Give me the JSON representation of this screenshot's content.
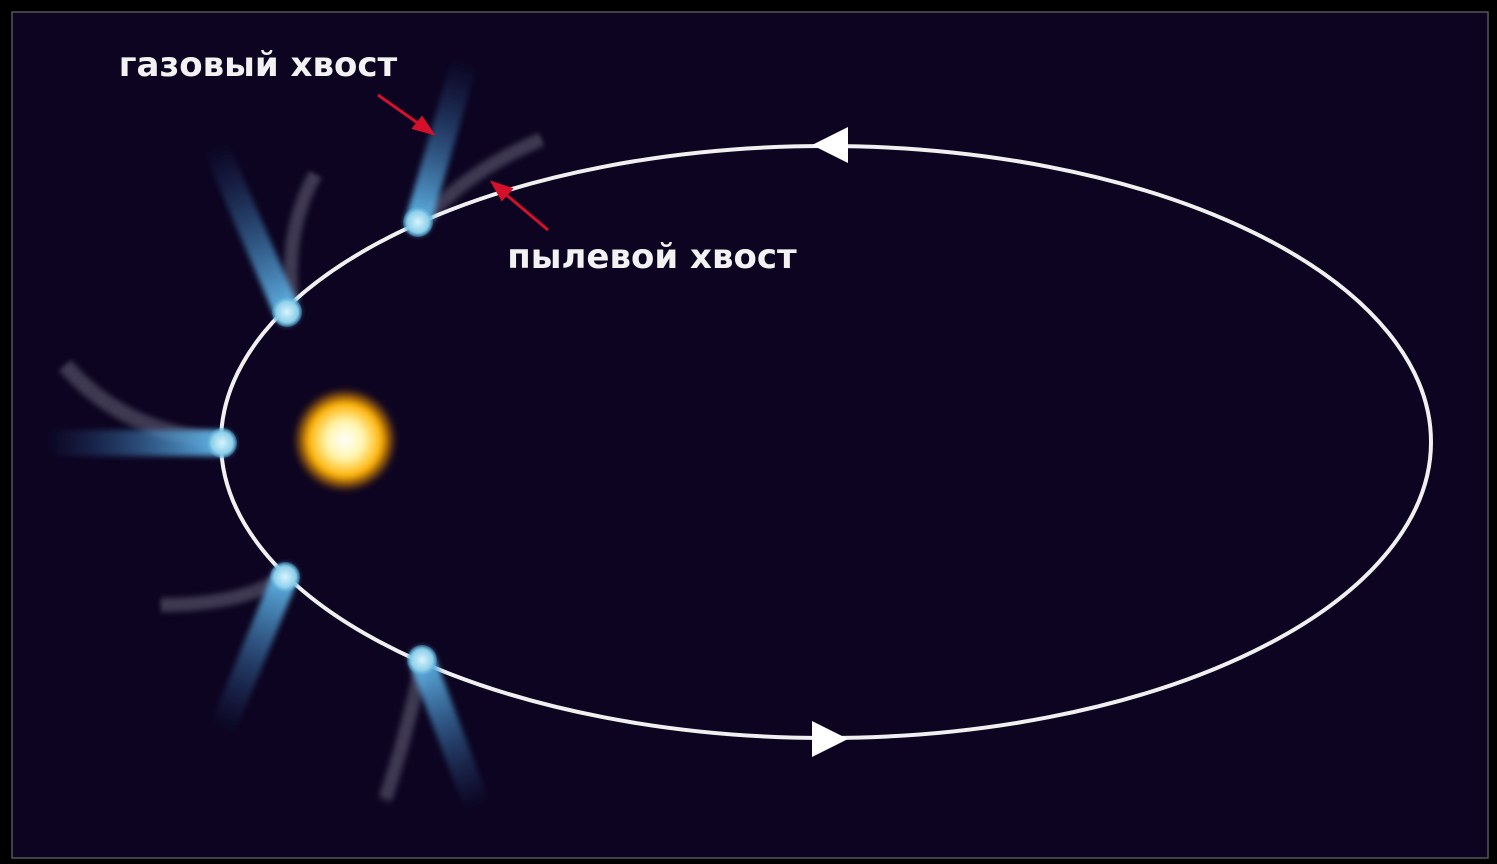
{
  "labels": {
    "gas_tail": "газовый хвост",
    "dust_tail": "пылевой хвост"
  }
}
